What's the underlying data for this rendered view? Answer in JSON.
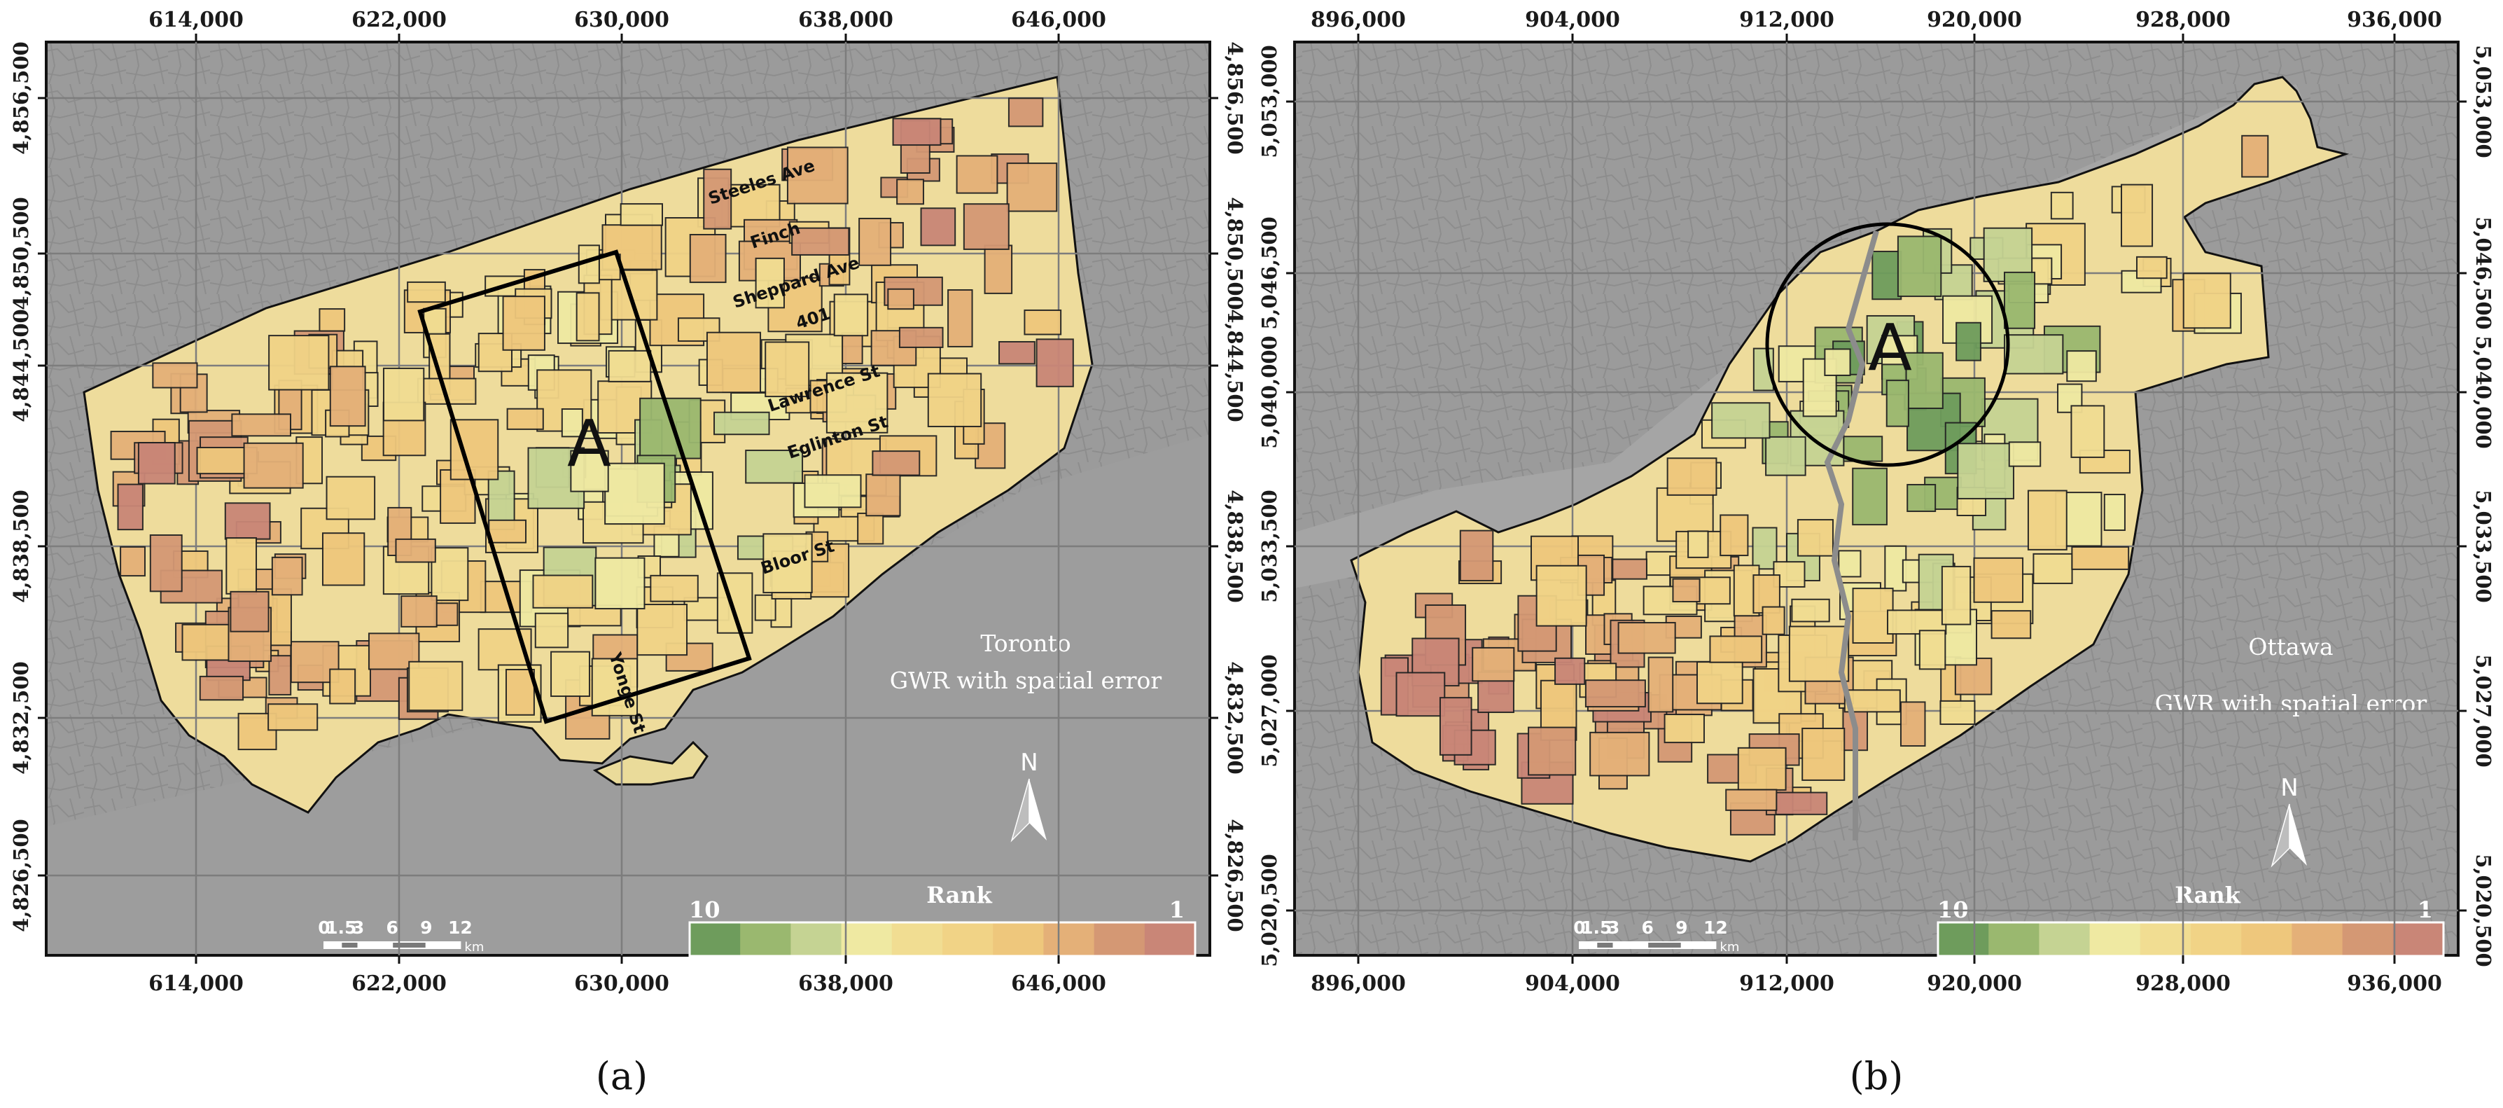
{
  "panels": [
    {
      "id": "a",
      "caption": "(a)",
      "city_label": "Toronto",
      "model_label": "GWR with spatial error",
      "area_label": "A",
      "x_ticks": [
        "614,000",
        "622,000",
        "630,000",
        "638,000",
        "646,000"
      ],
      "y_ticks": [
        "4,856,500",
        "4,850,500",
        "4,844,500",
        "4,838,500",
        "4,832,500",
        "4,826,500"
      ],
      "streets": [
        "Steeles Ave",
        "Finch",
        "Sheppard Ave",
        "401",
        "Lawrence St",
        "Eglinton St",
        "Bloor St",
        "Yonge St"
      ],
      "legend": {
        "title": "Rank",
        "high": "10",
        "low": "1"
      },
      "scale": {
        "labels": [
          "0",
          "1.5",
          "3",
          "6",
          "9",
          "12"
        ],
        "unit": "km"
      },
      "north": "N"
    },
    {
      "id": "b",
      "caption": "(b)",
      "city_label": "Ottawa",
      "model_label": "GWR with spatial error",
      "area_label": "A",
      "x_ticks": [
        "896,000",
        "904,000",
        "912,000",
        "920,000",
        "928,000",
        "936,000"
      ],
      "y_ticks": [
        "5,053,000",
        "5,046,500",
        "5,040,000",
        "5,033,500",
        "5,027,000",
        "5,020,500"
      ],
      "legend": {
        "title": "Rank",
        "high": "10",
        "low": "1"
      },
      "scale": {
        "labels": [
          "0",
          "1.5",
          "3",
          "6",
          "9",
          "12"
        ],
        "unit": "km"
      },
      "north": "N"
    }
  ],
  "rank_colors": [
    "#6e9c5c",
    "#9ab86f",
    "#c5d393",
    "#efe9a2",
    "#f1dd92",
    "#f1d386",
    "#eec77c",
    "#e4b078",
    "#d49874",
    "#c98677"
  ],
  "colors": {
    "background": "#9b9b9b",
    "basemap_lines": "#858585",
    "boundary": "#111111"
  }
}
